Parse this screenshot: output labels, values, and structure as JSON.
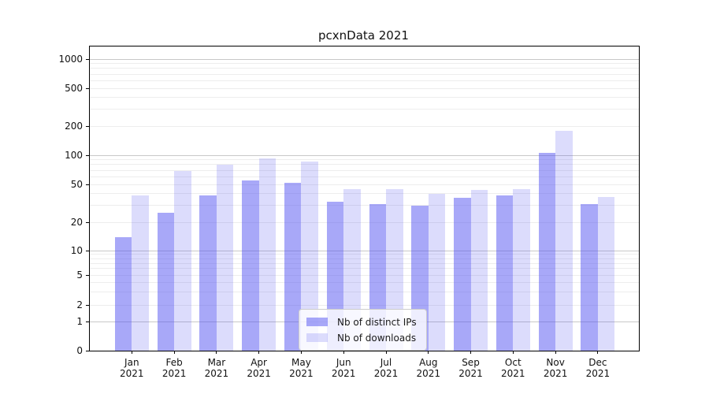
{
  "title": "pcxnData 2021",
  "chart_data": {
    "type": "bar",
    "title": "pcxnData 2021",
    "categories": [
      "Jan 2021",
      "Feb 2021",
      "Mar 2021",
      "Apr 2021",
      "May 2021",
      "Jun 2021",
      "Jul 2021",
      "Aug 2021",
      "Sep 2021",
      "Oct 2021",
      "Nov 2021",
      "Dec 2021"
    ],
    "series": [
      {
        "name": "Nb of distinct IPs",
        "color_hex": "#5151f1",
        "alpha": 0.5,
        "values": [
          14,
          25,
          38,
          55,
          52,
          33,
          31,
          30,
          36,
          38,
          105,
          31
        ]
      },
      {
        "name": "Nb of downloads",
        "color_hex": "#5151f1",
        "alpha": 0.2,
        "values": [
          38,
          69,
          80,
          93,
          86,
          45,
          45,
          40,
          44,
          45,
          180,
          37
        ]
      }
    ],
    "xlabel": "",
    "ylabel": "",
    "yscale": "symlog",
    "ylim": [
      0,
      1350
    ],
    "y_ticks": [
      0,
      1,
      2,
      5,
      10,
      20,
      50,
      100,
      200,
      500,
      1000
    ],
    "grid": "on",
    "gridline_major_values": [
      1,
      10,
      100,
      1000
    ],
    "gridline_minor_values": [
      2,
      3,
      4,
      5,
      6,
      7,
      8,
      9,
      20,
      30,
      40,
      50,
      60,
      70,
      80,
      90,
      200,
      300,
      400,
      500,
      600,
      700,
      800,
      900
    ],
    "legend_position": "inside bottom-center",
    "colors": {
      "bar_dark": "#a8a8f8",
      "bar_light": "#dcdcf8",
      "grid_major": "#c8c8c8",
      "grid_minor": "#ededed",
      "frame": "#000000"
    }
  }
}
